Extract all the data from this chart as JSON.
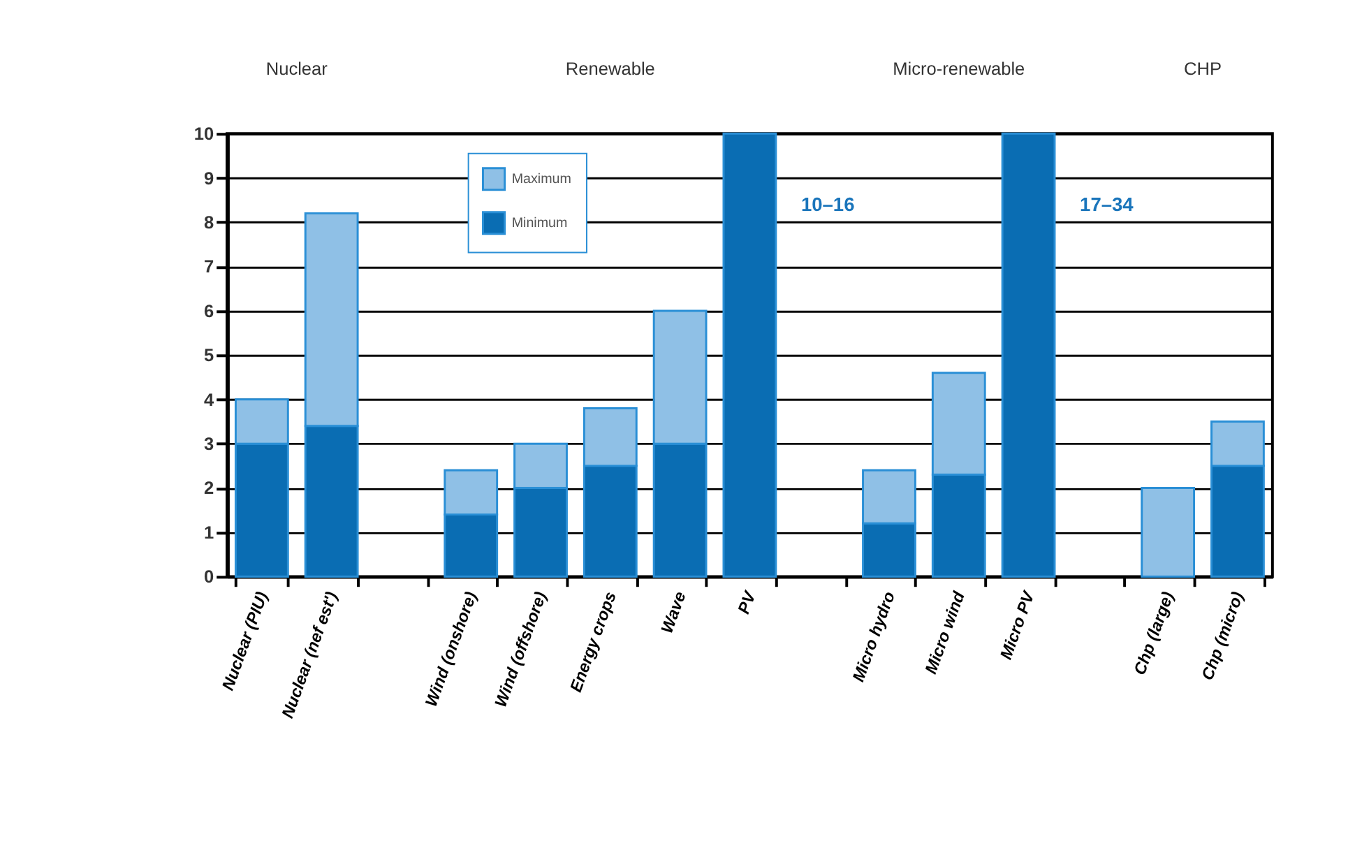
{
  "chart_data": {
    "type": "bar",
    "stacked": true,
    "categories": [
      "Nuclear (PIU)",
      "Nuclear (nef est')",
      null,
      "Wind (onshore)",
      "Wind (offshore)",
      "Energy crops",
      "Wave",
      "PV",
      null,
      "Micro hydro",
      "Micro wind",
      "Micro PV",
      null,
      "Chp (large)",
      "Chp (micro)"
    ],
    "series": [
      {
        "name": "Minimum",
        "color": "#0a6db3",
        "values": [
          3,
          3.4,
          null,
          1.4,
          2,
          2.5,
          3,
          10,
          null,
          1.2,
          2.3,
          10,
          null,
          null,
          2.5
        ]
      },
      {
        "name": "Maximum",
        "color": "#8fc0e6",
        "values": [
          1,
          4.8,
          null,
          1,
          1,
          1.3,
          3,
          null,
          null,
          1.2,
          2.3,
          null,
          null,
          2,
          1
        ]
      }
    ],
    "ylim": [
      0,
      10
    ],
    "yticks": [
      0,
      1,
      2,
      3,
      4,
      5,
      6,
      7,
      8,
      9,
      10
    ],
    "grid": "y",
    "legend": "top left",
    "annotations": [
      "Nuclear",
      "Renewable",
      "Micro-renewable",
      "CHP",
      "10–16",
      "17–34"
    ]
  }
}
